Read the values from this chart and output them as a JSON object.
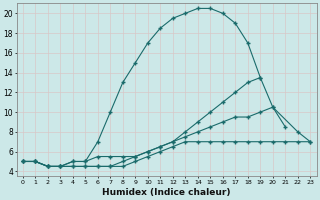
{
  "xlabel": "Humidex (Indice chaleur)",
  "bg_color": "#cce8e8",
  "line_color": "#1a6b6b",
  "xlim": [
    -0.5,
    23.5
  ],
  "ylim": [
    3.5,
    21
  ],
  "xticks": [
    0,
    1,
    2,
    3,
    4,
    5,
    6,
    7,
    8,
    9,
    10,
    11,
    12,
    13,
    14,
    15,
    16,
    17,
    18,
    19,
    20,
    21,
    22,
    23
  ],
  "yticks": [
    4,
    6,
    8,
    10,
    12,
    14,
    16,
    18,
    20
  ],
  "grid_color": "#c0d8d8",
  "line1_x": [
    0,
    1,
    2,
    3,
    4,
    5,
    6,
    7,
    8,
    9,
    10,
    11,
    12,
    13,
    14,
    15,
    16,
    17,
    18,
    19
  ],
  "line1_y": [
    5,
    5,
    4.5,
    4.5,
    5,
    5,
    7,
    10,
    13,
    15,
    17,
    18.5,
    19.5,
    20,
    20.5,
    20.5,
    20,
    19,
    17,
    13.5
  ],
  "line2_x": [
    0,
    1,
    2,
    3,
    4,
    5,
    6,
    7,
    8,
    9,
    10,
    11,
    12,
    13,
    14,
    15,
    16,
    17,
    18,
    19,
    20,
    21
  ],
  "line2_y": [
    5,
    5,
    4.5,
    4.5,
    5,
    5,
    5.5,
    5.5,
    5.5,
    5.5,
    6,
    6.5,
    7,
    8,
    9,
    10,
    11,
    12,
    13,
    13.5,
    10.5,
    8.5
  ],
  "line3_x": [
    0,
    1,
    2,
    3,
    4,
    5,
    6,
    7,
    8,
    9,
    10,
    11,
    12,
    13,
    14,
    15,
    16,
    17,
    18,
    19,
    20,
    22,
    23
  ],
  "line3_y": [
    5,
    5,
    4.5,
    4.5,
    4.5,
    4.5,
    4.5,
    4.5,
    5,
    5.5,
    6,
    6.5,
    7,
    7.5,
    8,
    8.5,
    9,
    9.5,
    9.5,
    10,
    10.5,
    8,
    7
  ],
  "line4_x": [
    0,
    1,
    2,
    3,
    4,
    5,
    6,
    7,
    8,
    9,
    10,
    11,
    12,
    13,
    14,
    15,
    16,
    17,
    18,
    19,
    20,
    21,
    22,
    23
  ],
  "line4_y": [
    5,
    5,
    4.5,
    4.5,
    4.5,
    4.5,
    4.5,
    4.5,
    4.5,
    5,
    5.5,
    6,
    6.5,
    7,
    7,
    7,
    7,
    7,
    7,
    7,
    7,
    7,
    7,
    7
  ]
}
